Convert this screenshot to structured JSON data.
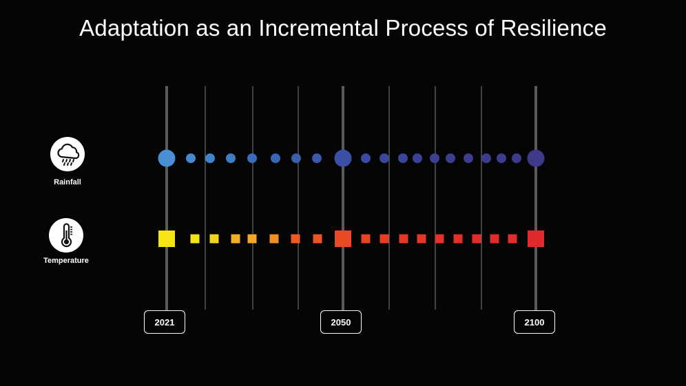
{
  "title": "Adaptation as an Incremental Process of Resilience",
  "rows": {
    "rainfall": {
      "label": "Rainfall",
      "icon": "rain-cloud-icon"
    },
    "temperature": {
      "label": "Temperature",
      "icon": "thermometer-icon"
    }
  },
  "years": [
    "2021",
    "2050",
    "2100"
  ],
  "colors": {
    "background": "#050505",
    "major_line": "#5a5a5a",
    "minor_line": "#6a6a6a"
  },
  "timeline": {
    "rainfall_colors": [
      "#4a8fd6",
      "#4589cf",
      "#4183c7",
      "#3e7dc0",
      "#3b6bb8",
      "#3a65b2",
      "#3a60ad",
      "#3a5aa8",
      "#3a4fa5",
      "#3a4ba0",
      "#3a479b",
      "#3b4497",
      "#3c4294",
      "#3c4091",
      "#3c3e8e",
      "#3c3d8c",
      "#3c3c8b",
      "#3d3c8a",
      "#3d3b89"
    ],
    "temperature_colors": [
      "#f7e417",
      "#f2e31a",
      "#f0d321",
      "#f1b025",
      "#f0a828",
      "#f08f27",
      "#ee5c23",
      "#ec5425",
      "#e94b23",
      "#e84423",
      "#e63d24",
      "#e43826",
      "#e33528",
      "#e2332a",
      "#e1302b",
      "#e12e2c",
      "#e02d2c",
      "#df2c2c",
      "#df2b2b"
    ]
  }
}
